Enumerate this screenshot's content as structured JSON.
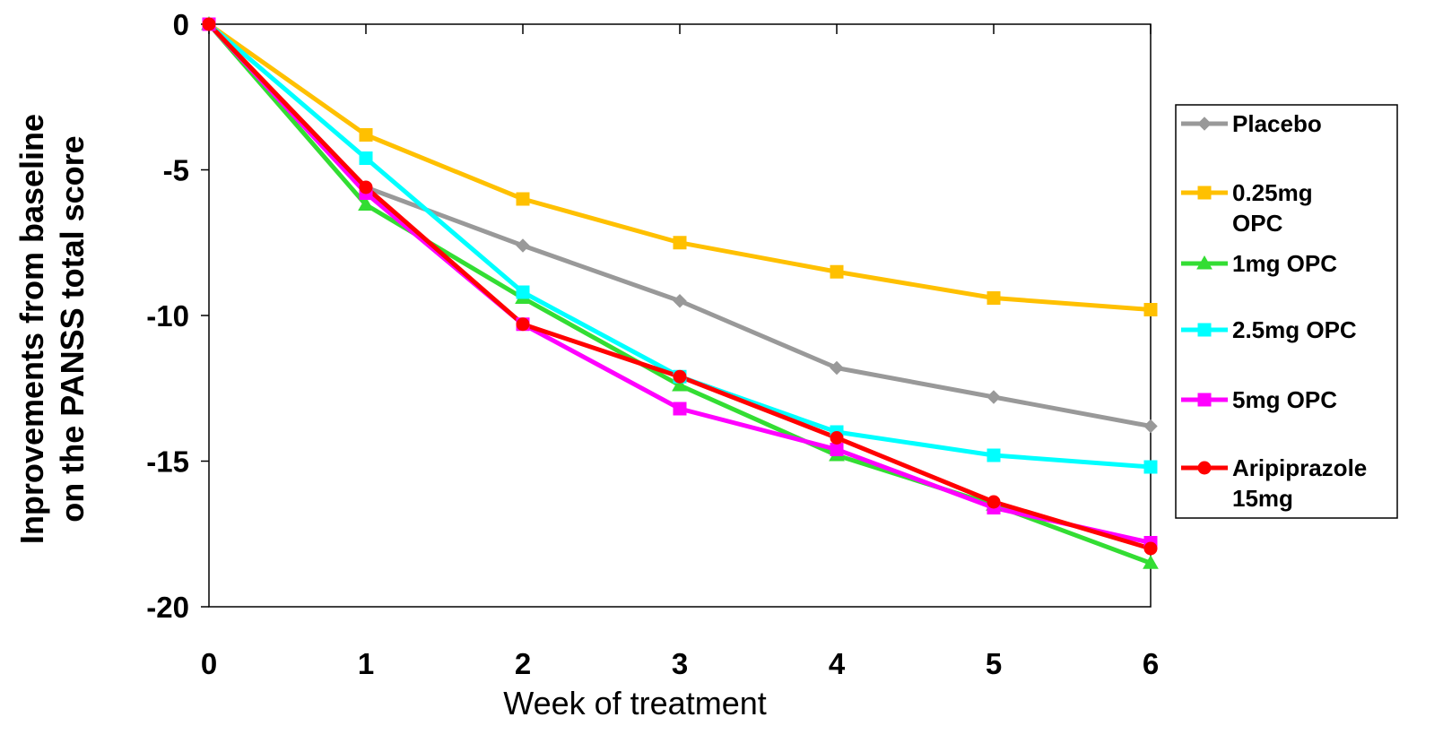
{
  "chart_data": {
    "type": "line",
    "xlabel": "Week of treatment",
    "ylabel_lines": [
      "Inprovements from baseline",
      "on the PANSS total score"
    ],
    "x": [
      0,
      1,
      2,
      3,
      4,
      5,
      6
    ],
    "x_ticks": [
      "0",
      "1",
      "2",
      "3",
      "4",
      "5",
      "6"
    ],
    "y_ticks": [
      "0",
      "-5",
      "-10",
      "-15",
      "-20"
    ],
    "xlim": [
      0,
      6
    ],
    "ylim": [
      -20,
      0
    ],
    "grid": false,
    "legend_position": "right",
    "series": [
      {
        "name": "Placebo",
        "name_lines": [
          "Placebo"
        ],
        "color": "#999999",
        "marker": "diamond",
        "values": [
          0,
          -5.6,
          -7.6,
          -9.5,
          -11.8,
          -12.8,
          -13.8
        ]
      },
      {
        "name": "0.25mg OPC",
        "name_lines": [
          "0.25mg",
          "OPC"
        ],
        "color": "#FFC000",
        "marker": "square",
        "values": [
          0,
          -3.8,
          -6.0,
          -7.5,
          -8.5,
          -9.4,
          -9.8
        ]
      },
      {
        "name": "1mg OPC",
        "name_lines": [
          "1mg OPC"
        ],
        "color": "#33DD33",
        "marker": "triangle",
        "values": [
          0,
          -6.2,
          -9.4,
          -12.4,
          -14.8,
          -16.5,
          -18.5
        ]
      },
      {
        "name": "2.5mg OPC",
        "name_lines": [
          "2.5mg OPC"
        ],
        "color": "#00FFFF",
        "marker": "square",
        "values": [
          0,
          -4.6,
          -9.2,
          -12.1,
          -14.0,
          -14.8,
          -15.2
        ]
      },
      {
        "name": "5mg OPC",
        "name_lines": [
          "5mg OPC"
        ],
        "color": "#FF00FF",
        "marker": "square",
        "values": [
          0,
          -5.8,
          -10.3,
          -13.2,
          -14.6,
          -16.6,
          -17.8
        ]
      },
      {
        "name": "Aripiprazole 15mg",
        "name_lines": [
          "Aripiprazole",
          "15mg"
        ],
        "color": "#FF0000",
        "marker": "circle",
        "values": [
          0,
          -5.6,
          -10.3,
          -12.1,
          -14.2,
          -16.4,
          -18.0
        ]
      }
    ]
  }
}
